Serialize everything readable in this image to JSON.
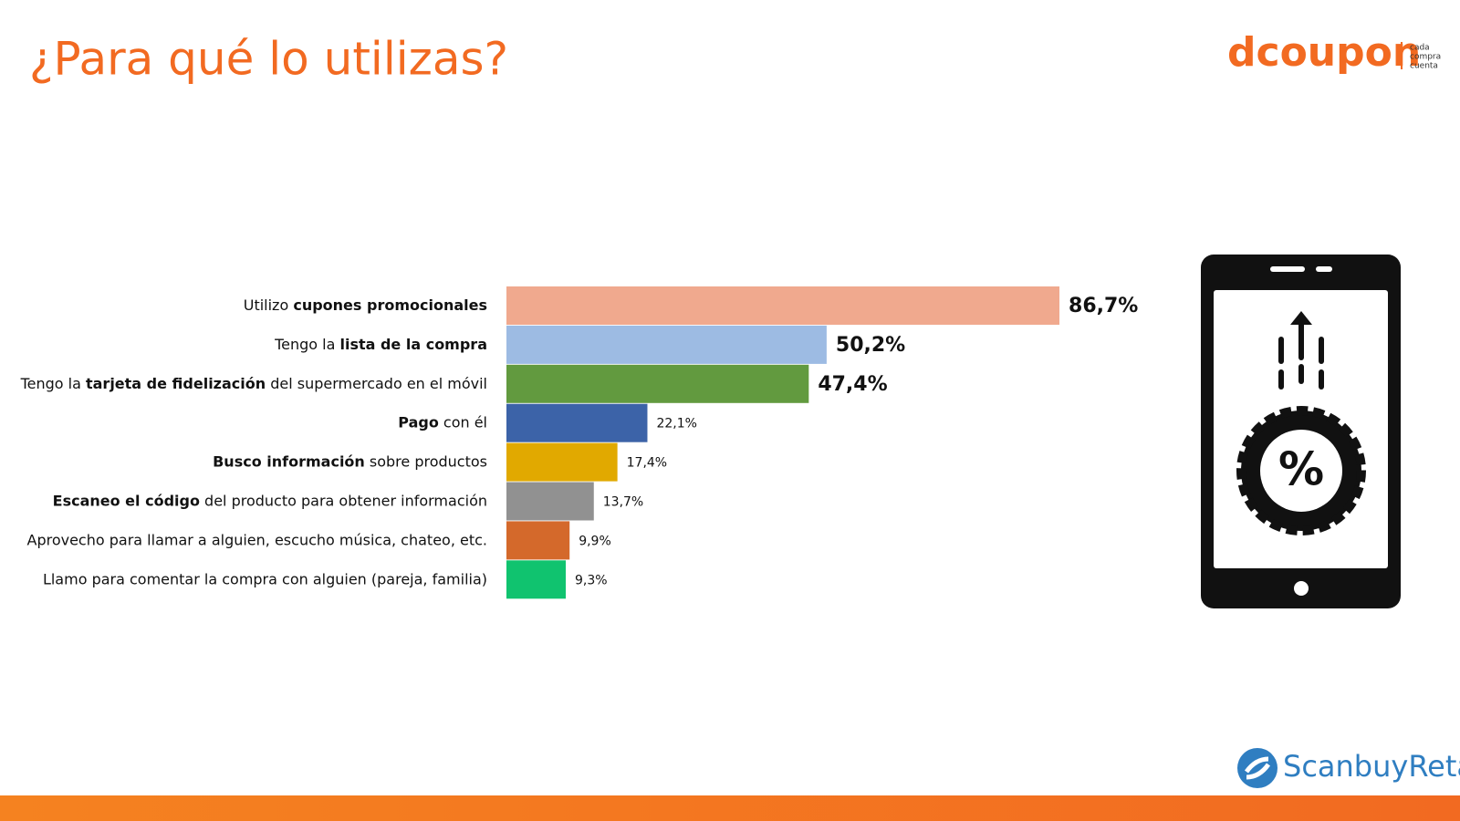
{
  "chart_data": {
    "type": "bar",
    "orientation": "horizontal",
    "title": "¿Para qué lo utilizas?",
    "categories": [
      [
        {
          "text": "Utilizo "
        },
        {
          "text": "cupones promocionales",
          "bold": true
        }
      ],
      [
        {
          "text": "Tengo la "
        },
        {
          "text": "lista de la compra",
          "bold": true
        }
      ],
      [
        {
          "text": "Tengo la "
        },
        {
          "text": "tarjeta de fidelización",
          "bold": true
        },
        {
          "text": " del supermercado en el móvil"
        }
      ],
      [
        {
          "text": "Pago",
          "bold": true
        },
        {
          "text": " con él"
        }
      ],
      [
        {
          "text": "Busco información",
          "bold": true
        },
        {
          "text": " sobre productos"
        }
      ],
      [
        {
          "text": "Escaneo el código",
          "bold": true
        },
        {
          "text": " del producto para obtener información"
        }
      ],
      [
        {
          "text": "Aprovecho para llamar a alguien, escucho música, chateo, etc."
        }
      ],
      [
        {
          "text": "Llamo para comentar la compra con alguien (pareja, familia)"
        }
      ]
    ],
    "values": [
      86.7,
      50.2,
      47.4,
      22.1,
      17.4,
      13.7,
      9.9,
      9.3
    ],
    "value_labels": [
      "86,7%",
      "50,2%",
      "47,4%",
      "22,1%",
      "17,4%",
      "13,7%",
      "9,9%",
      "9,3%"
    ],
    "highlight": [
      true,
      true,
      true,
      false,
      false,
      false,
      false,
      false
    ],
    "colors": [
      "#f0a98e",
      "#9dbbe3",
      "#629a3f",
      "#3c63a8",
      "#e1a900",
      "#919191",
      "#d4692b",
      "#10c36f"
    ],
    "xlim": [
      0,
      100
    ]
  },
  "logo": {
    "name": "dcoupon",
    "tagline": [
      "cada",
      "compra",
      "cuenta"
    ]
  },
  "icon_label": "%",
  "footer_logo": "ScanbuyRetai"
}
